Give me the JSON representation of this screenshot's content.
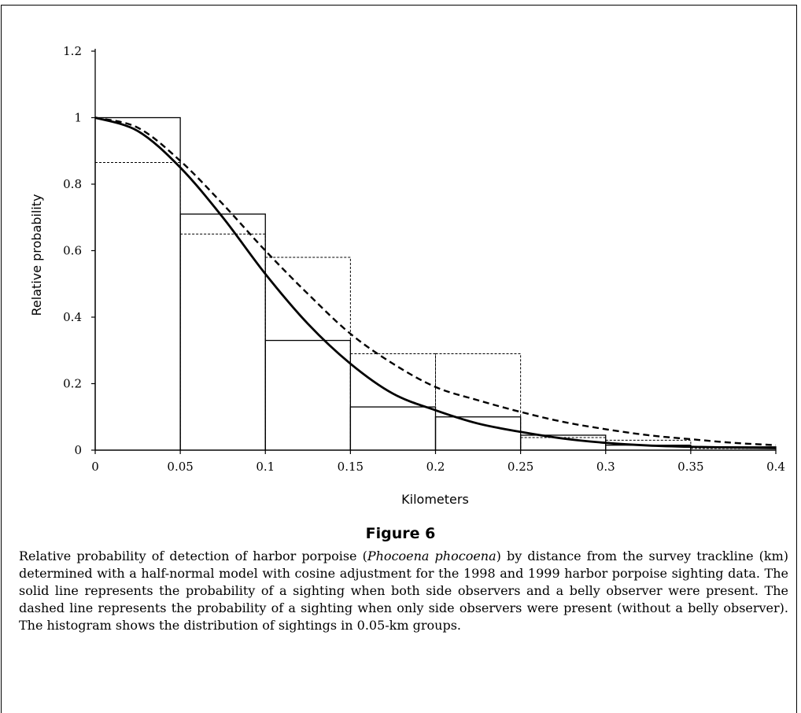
{
  "chart_data": {
    "type": "line",
    "xlabel": "Kilometers",
    "ylabel": "Relative probability",
    "xlim": [
      0,
      0.4
    ],
    "ylim": [
      0,
      1.2
    ],
    "x_ticks": [
      "0",
      "0.05",
      "0.1",
      "0.15",
      "0.2",
      "0.25",
      "0.3",
      "0.35",
      "0.4"
    ],
    "y_ticks": [
      "0",
      "0.2",
      "0.4",
      "0.6",
      "0.8",
      "1",
      "1.2"
    ],
    "grid": false,
    "legend": "none",
    "histogram_bins": [
      0,
      0.05,
      0.1,
      0.15,
      0.2,
      0.25,
      0.3,
      0.35,
      0.4
    ],
    "series": [
      {
        "style": "solid-curve",
        "x": [
          0,
          0.025,
          0.05,
          0.075,
          0.1,
          0.125,
          0.15,
          0.175,
          0.2,
          0.225,
          0.25,
          0.275,
          0.3,
          0.325,
          0.35,
          0.375,
          0.4
        ],
        "values": [
          1.0,
          0.96,
          0.85,
          0.7,
          0.53,
          0.38,
          0.26,
          0.17,
          0.12,
          0.08,
          0.055,
          0.035,
          0.022,
          0.014,
          0.01,
          0.008,
          0.006
        ]
      },
      {
        "style": "dashed-curve",
        "x": [
          0,
          0.025,
          0.05,
          0.075,
          0.1,
          0.125,
          0.15,
          0.175,
          0.2,
          0.225,
          0.25,
          0.275,
          0.3,
          0.325,
          0.35,
          0.375,
          0.4
        ],
        "values": [
          1.0,
          0.97,
          0.87,
          0.74,
          0.6,
          0.47,
          0.35,
          0.26,
          0.19,
          0.15,
          0.115,
          0.085,
          0.063,
          0.045,
          0.033,
          0.022,
          0.015
        ]
      },
      {
        "style": "solid-histogram",
        "values": [
          1.0,
          0.71,
          0.33,
          0.13,
          0.1,
          0.045,
          0.015,
          0.01
        ]
      },
      {
        "style": "dashed-histogram",
        "values": [
          0.865,
          0.65,
          0.58,
          0.29,
          0.29,
          0.038,
          0.03,
          0.005
        ]
      }
    ]
  },
  "figure": {
    "title": "Figure 6",
    "caption_part1": "Relative probability of detection of harbor porpoise (",
    "caption_species": "Phocoena phocoena",
    "caption_part2": ") by distance from the survey trackline (km) determined with a half-normal model with cosine adjustment for the 1998 and 1999 harbor porpoise sighting data. The solid line represents the probability of a sighting when both side observers and a belly observer were present. The dashed line represents the probability of a sighting when only side observers were present (without a belly observer). The histogram shows the distribution of sightings in 0.05-km groups."
  }
}
